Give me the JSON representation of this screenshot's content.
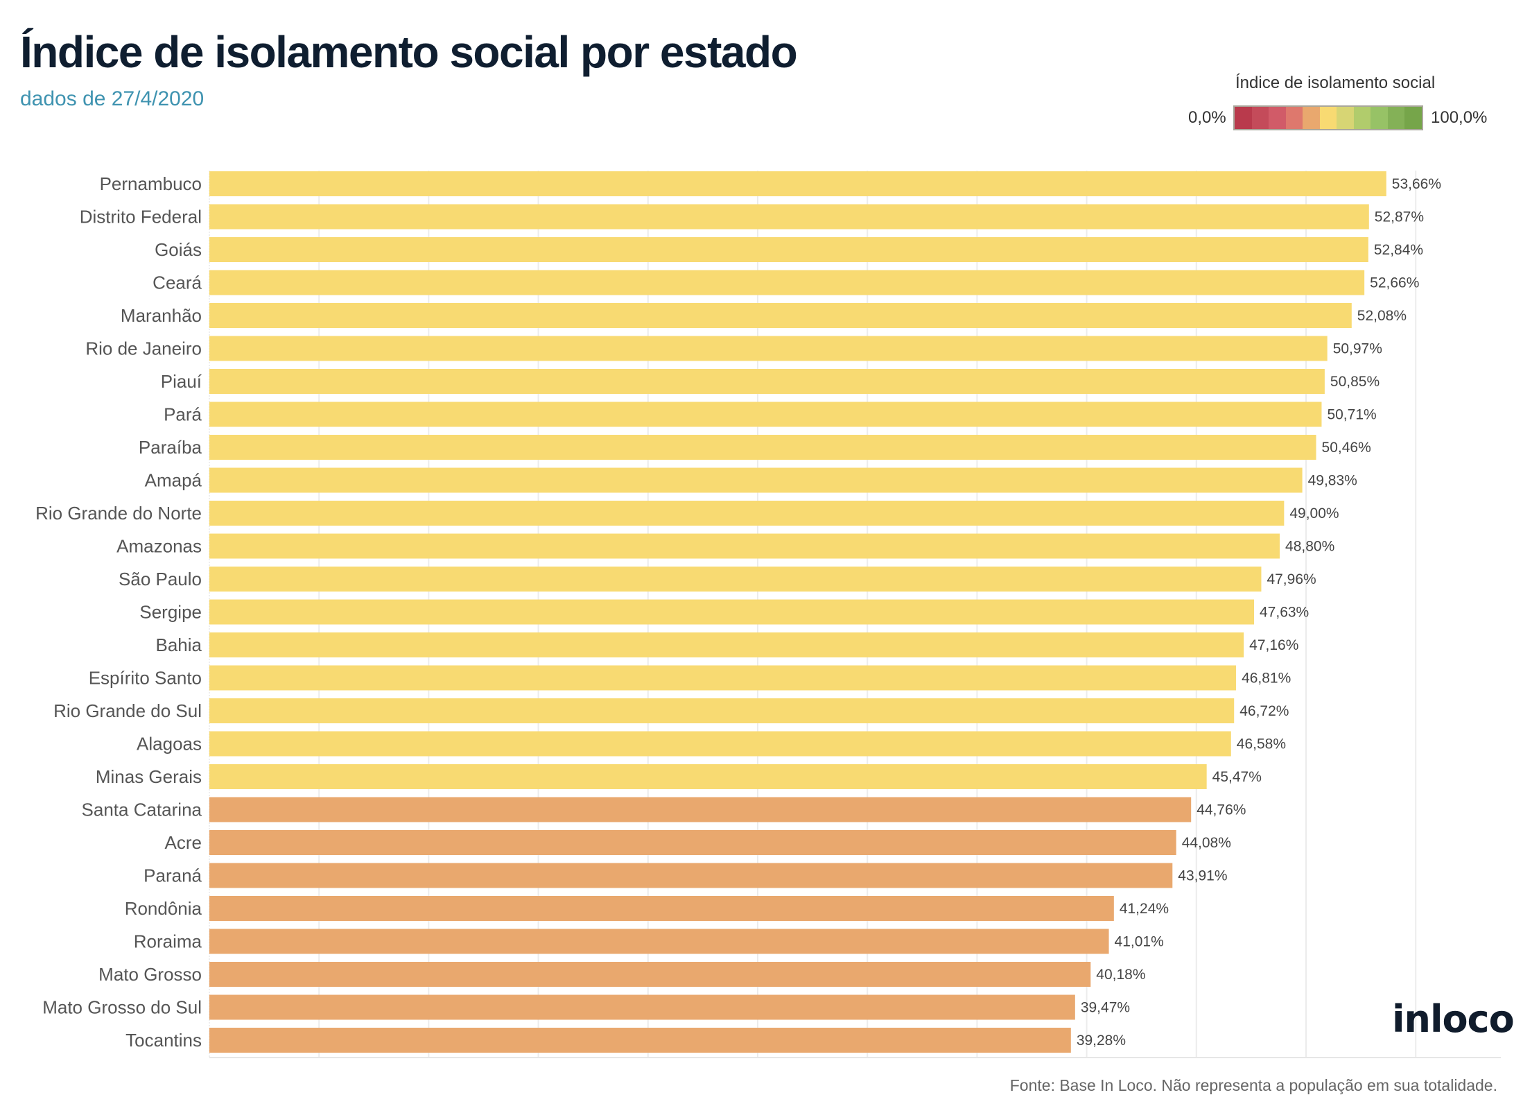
{
  "header": {
    "title": "Índice de isolamento social por estado",
    "subtitle": "dados de 27/4/2020"
  },
  "legend": {
    "title": "Índice de isolamento social",
    "min_label": "0,0%",
    "max_label": "100,0%",
    "colors": [
      "#b93a4c",
      "#c44b5a",
      "#d15b68",
      "#de786d",
      "#e9a86e",
      "#f8da72",
      "#d7d574",
      "#b1cc6c",
      "#97c266",
      "#84b157",
      "#76a54a"
    ]
  },
  "chart_data": {
    "type": "bar",
    "orientation": "horizontal",
    "title": "Índice de isolamento social por estado",
    "xlim": [
      0,
      55
    ],
    "grid": true,
    "categories": [
      "Pernambuco",
      "Distrito Federal",
      "Goiás",
      "Ceará",
      "Maranhão",
      "Rio de Janeiro",
      "Piauí",
      "Pará",
      "Paraíba",
      "Amapá",
      "Rio Grande do Norte",
      "Amazonas",
      "São Paulo",
      "Sergipe",
      "Bahia",
      "Espírito Santo",
      "Rio Grande do Sul",
      "Alagoas",
      "Minas Gerais",
      "Santa Catarina",
      "Acre",
      "Paraná",
      "Rondônia",
      "Roraima",
      "Mato Grosso",
      "Mato Grosso do Sul",
      "Tocantins"
    ],
    "values": [
      53.66,
      52.87,
      52.84,
      52.66,
      52.08,
      50.97,
      50.85,
      50.71,
      50.46,
      49.83,
      49.0,
      48.8,
      47.96,
      47.63,
      47.16,
      46.81,
      46.72,
      46.58,
      45.47,
      44.76,
      44.08,
      43.91,
      41.24,
      41.01,
      40.18,
      39.47,
      39.28
    ],
    "labels": [
      "53,66%",
      "52,87%",
      "52,84%",
      "52,66%",
      "52,08%",
      "50,97%",
      "50,85%",
      "50,71%",
      "50,46%",
      "49,83%",
      "49,00%",
      "48,80%",
      "47,96%",
      "47,63%",
      "47,16%",
      "46,81%",
      "46,72%",
      "46,58%",
      "45,47%",
      "44,76%",
      "44,08%",
      "43,91%",
      "41,24%",
      "41,01%",
      "40,18%",
      "39,47%",
      "39,28%"
    ],
    "color_yellow": "#f8da72",
    "color_orange": "#e9a86e"
  },
  "logo": "inloco",
  "footer": "Fonte: Base In Loco. Não representa a população em sua totalidade."
}
